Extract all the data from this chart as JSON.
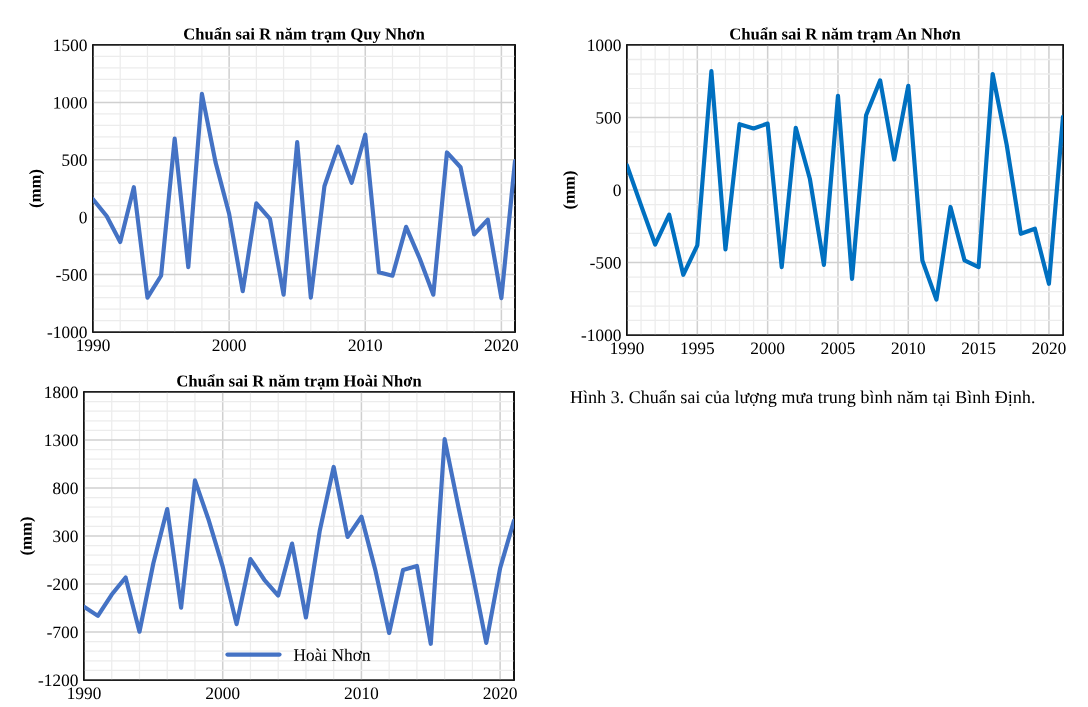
{
  "chart_data": [
    {
      "type": "line",
      "title": "Chuẩn sai R năm trạm Quy Nhơn",
      "ylabel": "(mm)",
      "x": [
        1990,
        1991,
        1992,
        1993,
        1994,
        1995,
        1996,
        1997,
        1998,
        1999,
        2000,
        2001,
        2002,
        2003,
        2004,
        2005,
        2006,
        2007,
        2008,
        2009,
        2010,
        2011,
        2012,
        2013,
        2014,
        2015,
        2016,
        2017,
        2018,
        2019,
        2020,
        2021
      ],
      "xlim": [
        1990,
        2021
      ],
      "xticks": [
        1990,
        2000,
        2010,
        2020
      ],
      "ylim": [
        -1000,
        1500
      ],
      "yticks": [
        -1000,
        -500,
        0,
        500,
        1000,
        1500
      ],
      "grid": true,
      "series": [
        {
          "color": "#4472c4",
          "values": [
            156,
            10,
            -216,
            261,
            -700,
            -510,
            684,
            -435,
            1074,
            480,
            30,
            -645,
            120,
            -15,
            -675,
            654,
            -700,
            270,
            615,
            300,
            720,
            -480,
            -510,
            -84,
            -360,
            -675,
            564,
            435,
            -150,
            -21,
            -705,
            489
          ]
        }
      ]
    },
    {
      "type": "line",
      "title": "Chuẩn sai R năm trạm An Nhơn",
      "ylabel": "(mm)",
      "x": [
        1990,
        1991,
        1992,
        1993,
        1994,
        1995,
        1996,
        1997,
        1998,
        1999,
        2000,
        2001,
        2002,
        2003,
        2004,
        2005,
        2006,
        2007,
        2008,
        2009,
        2010,
        2011,
        2012,
        2013,
        2014,
        2015,
        2016,
        2017,
        2018,
        2019,
        2020,
        2021
      ],
      "xlim": [
        1990,
        2021
      ],
      "xticks": [
        1990,
        1995,
        2000,
        2005,
        2010,
        2015,
        2020
      ],
      "ylim": [
        -1000,
        1000
      ],
      "yticks": [
        -1000,
        -500,
        0,
        500,
        1000
      ],
      "grid": true,
      "series": [
        {
          "color": "#0070c0",
          "values": [
            170,
            -106,
            -376,
            -170,
            -585,
            -382,
            820,
            -410,
            454,
            424,
            458,
            -532,
            429,
            78,
            -516,
            650,
            -613,
            516,
            756,
            210,
            719,
            -486,
            -756,
            -117,
            -486,
            -532,
            800,
            309,
            -302,
            -267,
            -647,
            505
          ]
        }
      ]
    },
    {
      "type": "line",
      "title": "Chuẩn sai R năm trạm Hoài Nhơn",
      "ylabel": "(mm)",
      "x": [
        1990,
        1991,
        1992,
        1993,
        1994,
        1995,
        1996,
        1997,
        1998,
        1999,
        2000,
        2001,
        2002,
        2003,
        2004,
        2005,
        2006,
        2007,
        2008,
        2009,
        2010,
        2011,
        2012,
        2013,
        2014,
        2015,
        2016,
        2017,
        2018,
        2019,
        2020,
        2021
      ],
      "xlim": [
        1990,
        2021
      ],
      "xticks": [
        1990,
        2000,
        2010,
        2020
      ],
      "ylim": [
        -1200,
        1800
      ],
      "yticks": [
        -1200,
        -700,
        -200,
        300,
        800,
        1300,
        1800
      ],
      "grid": true,
      "legend": "bottom",
      "series": [
        {
          "name": "Hoài Nhơn",
          "color": "#4472c4",
          "values": [
            -436,
            -532,
            -310,
            -132,
            -697,
            16,
            581,
            -447,
            879,
            461,
            -19,
            -618,
            60,
            -156,
            -320,
            221,
            -549,
            358,
            1019,
            290,
            502,
            -53,
            -710,
            -53,
            -12,
            -823,
            1310,
            598,
            -87,
            -813,
            -35,
            461
          ]
        }
      ]
    },
    {
      "type": "other",
      "annotations": [
        "Hình 3. Chuẩn sai của lượng mưa trung bình năm tại Bình Định."
      ]
    }
  ]
}
